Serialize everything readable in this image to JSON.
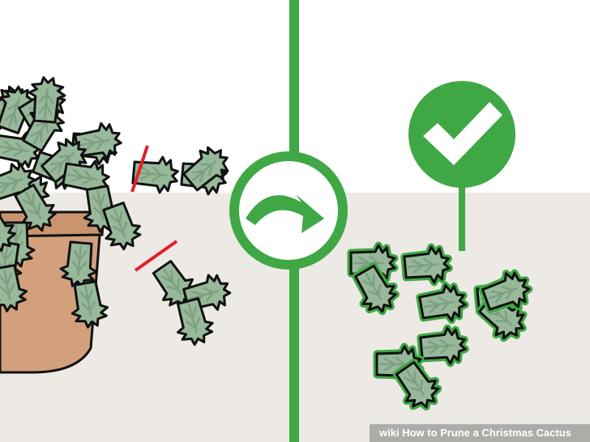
{
  "watermark": {
    "brand": "wiki",
    "title": "How to Prune a Christmas Cactus"
  },
  "colors": {
    "background": "#ffffff",
    "floor": "#edeae5",
    "accent_green": "#3fa845",
    "cut_mark_red": "#e3202a",
    "leaf": "#98b89a",
    "leaf_dark": "#7ea082",
    "pot": "#d2a07c",
    "outline": "#111111"
  },
  "icons": [
    "arrow-icon",
    "checkmark-icon",
    "cut-mark-icon"
  ]
}
